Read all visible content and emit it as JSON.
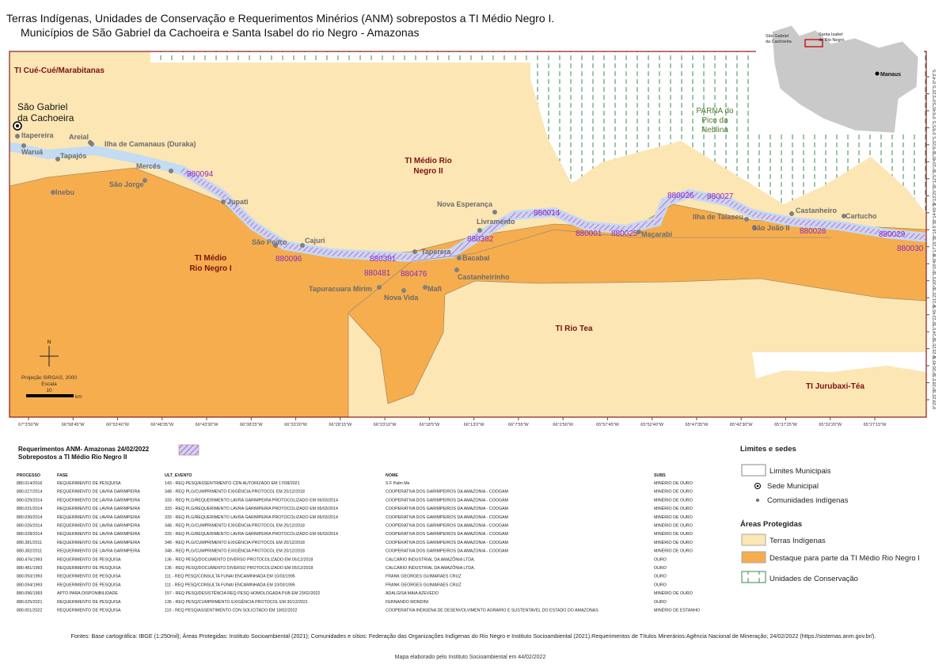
{
  "header": {
    "title_line1": "Terras Indígenas, Unidades de Conservação e Requerimentos Minérios (ANM) sobrepostos a TI Médio Negro I.",
    "title_line2": "Municípios de São Gabriel da Cachoeira e Santa Isabel do rio Negro - Amazonas"
  },
  "map": {
    "territories": [
      "TI Cué-Cué/Marabitanas",
      "TI Médio Rio",
      "Negro II",
      "TI Médio",
      "Rio Negro I",
      "TI Rio Tea",
      "TI Jurubaxi-Téa"
    ],
    "city": [
      "São Gabriel",
      "da Cachoeira"
    ],
    "parna": [
      "PARNA do",
      "Pico da",
      "Neblina"
    ],
    "communities": [
      "Itapereira",
      "Areial",
      "Waruá",
      "Tapajós",
      "Ilha de Camanaus (Duraka)",
      "Mercês",
      "São Jorge",
      "Inebu",
      "Jupati",
      "São Pedro",
      "Cajuri",
      "Taperera",
      "Bacabal",
      "Castanheirinho",
      "Mafi",
      "Nova Vida",
      "Tapuracuara Mirim",
      "Nova Esperança",
      "Livramento",
      "Maçarabi",
      "Ilha de Taiaseu",
      "São João II",
      "Castanheiro",
      "Cartucho"
    ],
    "processes": [
      "880094",
      "880096",
      "880381",
      "880481",
      "880476",
      "880382",
      "880014",
      "880001",
      "880025",
      "880026",
      "880027",
      "880028",
      "880029",
      "880030"
    ],
    "lon_labels": [
      "67°3'50\"W",
      "66°58'45\"W",
      "66°53'40\"W",
      "66°48'35\"W",
      "66°43'30\"W",
      "66°38'25\"W",
      "66°33'20\"W",
      "66°28'15\"W",
      "66°23'10\"W",
      "66°18'5\"W",
      "66°13'0\"W",
      "66°7'55\"W",
      "66°2'50\"W",
      "65°57'45\"W",
      "65°52'40\"W",
      "65°47'35\"W",
      "65°42'30\"W",
      "65°37'25\"W",
      "65°32'20\"W",
      "65°27'15\"W"
    ],
    "lat_labels": [
      "0°4'5\"S",
      "0°5'25\"S",
      "0°6'45\"S",
      "0°8'5\"S",
      "0°9'25\"S",
      "0°10'45\"S",
      "0°12'5\"S",
      "0°13'25\"S",
      "0°14'45\"S",
      "0°16'5\"S",
      "0°17'25\"S",
      "0°18'45\"S",
      "0°20'5\"S",
      "0°21'25\"S",
      "0°22'45\"S",
      "0°24'5\"S",
      "0°25'25\"S",
      "0°26'45\"S",
      "0°28'5\"S",
      "0°29'25\"S"
    ],
    "compass": "N",
    "projection": "Projeção SIRGAS, 2000",
    "scale_title": "Escala",
    "scale_value": "10",
    "scale_unit": "km"
  },
  "inset": {
    "manaus": "Manaus",
    "sao_gabriel": [
      "São Gabriel",
      "da Cachoeira"
    ],
    "santa_isabel": [
      "Santa Isabel",
      "do Rio Negro"
    ]
  },
  "table": {
    "title": [
      "Requerimentos ANM- Amazonas 24/02/2022",
      "Sobrepostos a TI Médio Rio Negro II"
    ],
    "header": [
      "PROCESSO",
      "FASE",
      "ULT_EVENTO",
      "NOME",
      "SUBS"
    ],
    "rows": [
      [
        "880.014/2016",
        "REQUERIMENTO DE PESQUISA",
        "143 - REQ PESQ/ASSENTIMENTO CDN AUTORIZADO EM 17/08/2021",
        "S F Palm Me",
        "MINÉRIO DE OURO"
      ],
      [
        "880.027/2014",
        "REQUERIMENTO DE LAVRA GARIMPEIRA",
        "348 - REQ PLG/CUMPRIMENTO  EXIGÊNCIA PROTOCOL EM 20/12/2018",
        "COOPERATIVA DOS GARIMPEIROS DA AMAZONIA - COOGAM",
        "MINÉRIO DE OURO"
      ],
      [
        "880.029/2014",
        "REQUERIMENTO DE LAVRA GARIMPEIRA",
        "333 - REQ PLG/REQUERIMENTO LAVRA GARIMPEIRA PROTOCOLIZADO EM 06/03/2014",
        "COOPERATIVA DOS GARIMPEIROS DA AMAZONIA - COOGAM",
        "MINÉRIO DE OURO"
      ],
      [
        "880.031/2014",
        "REQUERIMENTO DE LAVRA GARIMPEIRA",
        "333 - REQ PLG/REQUERIMENTO LAVRA GARIMPEIRA PROTOCOLIZADO EM 06/03/2014",
        "COOPERATIVA DOS GARIMPEIROS DA AMAZONIA - COOGAM",
        "MINÉRIO DE OURO"
      ],
      [
        "880.030/2014",
        "REQUERIMENTO DE LAVRA GARIMPEIRA",
        "333 - REQ PLG/REQUERIMENTO LAVRA GARIMPEIRA PROTOCOLIZADO EM 06/03/2014",
        "COOPERATIVA DOS GARIMPEIROS DA AMAZONIA - COOGAM",
        "MINÉRIO DE OURO"
      ],
      [
        "880.026/2014",
        "REQUERIMENTO DE LAVRA GARIMPEIRA",
        "348 - REQ PLG/CUMPRIMENTO  EXIGÊNCIA PROTOCOL EM 20/12/2018",
        "COOPERATIVA DOS GARIMPEIROS DA AMAZONIA - COOGAM",
        "MINÉRIO DE OURO"
      ],
      [
        "880.028/2014",
        "REQUERIMENTO DE LAVRA GARIMPEIRA",
        "333 - REQ PLG/REQUERIMENTO LAVRA GARIMPEIRA PROTOCOLIZADO EM 06/03/2014",
        "COOPERATIVA DOS GARIMPEIROS DA AMAZONIA - COOGAM",
        "MINÉRIO DE OURO"
      ],
      [
        "880.381/2011",
        "REQUERIMENTO DE LAVRA GARIMPEIRA",
        "348 - REQ PLG/CUMPRIMENTO  EXIGÊNCIA PROTOCOL EM 20/12/2018",
        "COOPERATIVA DOS GARIMPEIROS DA AMAZONIA - COOGAM",
        "MINÉRIO DE OURO"
      ],
      [
        "880.382/2011",
        "REQUERIMENTO DE LAVRA GARIMPEIRA",
        "348 - REQ PLG/CUMPRIMENTO  EXIGÊNCIA PROTOCOL EM 20/12/2018",
        "COOPERATIVA DOS GARIMPEIROS DA AMAZONIA - COOGAM",
        "MINÉRIO DE OURO"
      ],
      [
        "880.476/1993",
        "REQUERIMENTO DE PESQUISA",
        "136 - REQ PESQ/DOCUMENTO DIVERSO PROTOCOLIZADO EM 05/12/2018",
        "CALCÁRIO INDUSTRIAL DA AMAZÔNIA LTDA.",
        "OURO"
      ],
      [
        "880.481/1993",
        "REQUERIMENTO DE PESQUISA",
        "136 - REQ PESQ/DOCUMENTO DIVERSO PROTOCOLIZADO EM 05/12/2018",
        "CALCÁRIO INDUSTRIAL DA AMAZÔNIA LTDA.",
        "OURO"
      ],
      [
        "880.093/1993",
        "REQUERIMENTO DE PESQUISA",
        "111 - REQ PESQ/CONSULTA FUNAI ENCAMINHADA EM 10/03/1995",
        "FRANK GEORGES GUIMARAES CRUZ",
        "OURO"
      ],
      [
        "880.094/1993",
        "REQUERIMENTO DE PESQUISA",
        "111 - REQ PESQ/CONSULTA FUNAI ENCAMINHADA EM 10/03/1995",
        "FRANK GEORGES GUIMARAES CRUZ",
        "OURO"
      ],
      [
        "880.096/1993",
        "APTO PARA DISPONIBILIDADE",
        "157 - REQ PESQ/DESISTÊNCIA REQ PESQ HOMOLOGADA PUB EM 23/02/2022",
        "ADALGISA MAIA AZEVEDO",
        "MINÉRIO DE OURO"
      ],
      [
        "880.025/2021",
        "REQUERIMENTO DE PESQUISA",
        "135 - REQ PESQ/CUMPRIMENTO EXIGÊNCIA PROTOCOL EM 30/12/2021",
        "FERNANDO MONDINI",
        "OURO"
      ],
      [
        "880.001/2022",
        "REQUERIMENTO DE PESQUISA",
        "110 - REQ PESQ/ASSENTIMENTO CDN SOLICITADO EM 18/02/2022",
        "COOPERATIVA INDIGENA DE DESENVOLVIMENTO AGRARIO E SUSTENTAVEL DO ESTADO DO AMAZONAS",
        "MINÉRIO DE ESTANHO"
      ]
    ]
  },
  "legend": {
    "title1": "Limites e sedes",
    "items1": [
      "Limites Municipais",
      "Sede Municipal",
      "Comunidades indígenas"
    ],
    "title2": "Áreas Protegidas",
    "items2": [
      "Terras Indígenas",
      "Destaque para parte da TI Médio Rio Negro I",
      "Unidades de Conservação"
    ]
  },
  "footer": {
    "sources": "Fontes: Base cartográfica: IBGE (1:250mil); Áreas Protegidas: Instituto Socioambiental (2021); Comunidades e sítios: Federação das Organizações Indígenas do Rio Negro e Instituto Socioambiental (2021).Requerimentos de Títulos Minerários:Agência Nacional de Mineração; 24/02/2022 (https://sistemas.anm.gov.br/).",
    "credit": "Mapa elaborado pelo Instituto Socioambiental em 44/02/2022"
  }
}
